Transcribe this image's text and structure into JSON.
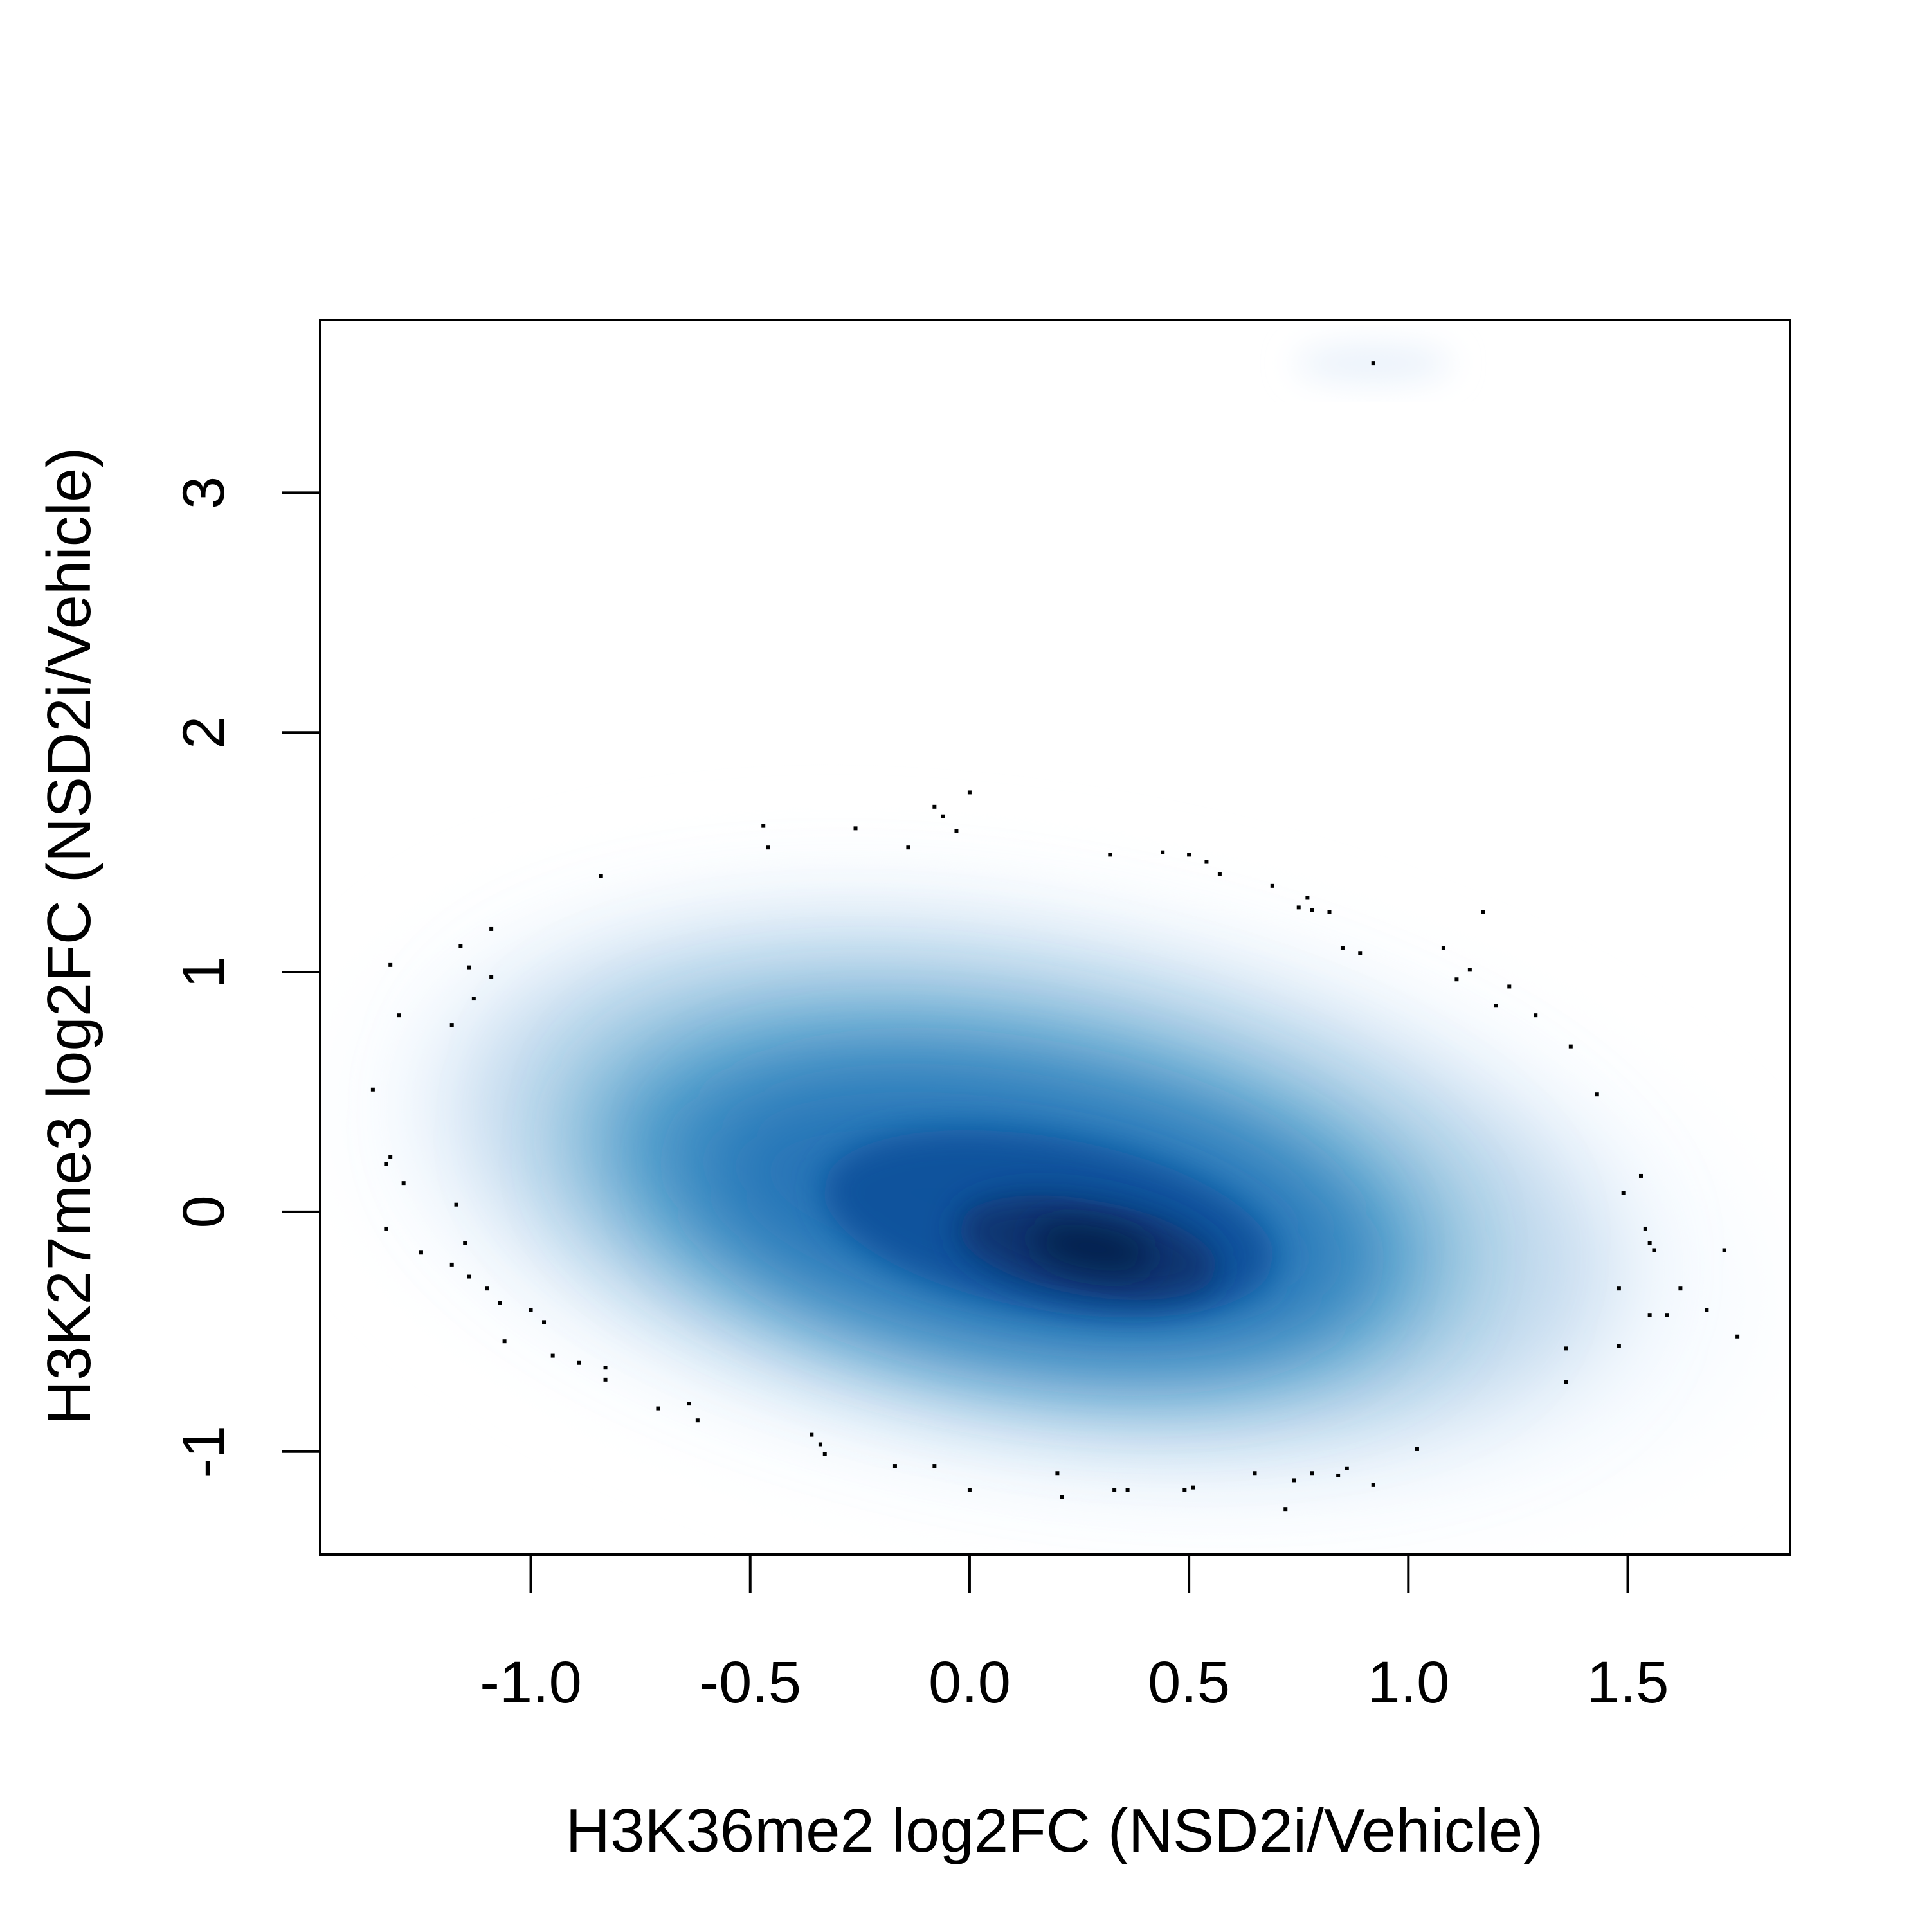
{
  "chart_data": {
    "type": "scatter",
    "style": "smoothed-density-scatter",
    "title": "",
    "xlabel": "H3K36me2 log2FC (NSD2i/Vehicle)",
    "ylabel": "H3K27me3 log2FC (NSD2i/Vehicle)",
    "xlim": [
      -1.48,
      1.87
    ],
    "ylim": [
      -1.43,
      3.72
    ],
    "x_ticks": [
      -1.0,
      -0.5,
      0.0,
      0.5,
      1.0,
      1.5
    ],
    "x_tick_labels": [
      "-1.0",
      "-0.5",
      "0.0",
      "0.5",
      "1.0",
      "1.5"
    ],
    "y_ticks": [
      -1,
      0,
      1,
      2,
      3
    ],
    "y_tick_labels": [
      "-1",
      "0",
      "1",
      "2",
      "3"
    ],
    "grid": false,
    "legend": "none",
    "colors": {
      "density_low": "#f7fbff",
      "density_mid": "#4292c6",
      "density_high": "#08306b",
      "outlier_points": "#000000",
      "axes": "#000000"
    },
    "density_center": {
      "x": 0.27,
      "y": -0.15
    },
    "outlier_points": [
      [
        0.92,
        3.54
      ],
      [
        0.0,
        1.75
      ],
      [
        -0.08,
        1.69
      ],
      [
        -0.06,
        1.65
      ],
      [
        -0.03,
        1.59
      ],
      [
        -0.47,
        1.61
      ],
      [
        -0.46,
        1.52
      ],
      [
        -0.26,
        1.6
      ],
      [
        -0.14,
        1.52
      ],
      [
        -0.84,
        1.4
      ],
      [
        0.32,
        1.49
      ],
      [
        0.44,
        1.5
      ],
      [
        0.5,
        1.49
      ],
      [
        0.54,
        1.46
      ],
      [
        0.57,
        1.41
      ],
      [
        0.69,
        1.36
      ],
      [
        0.75,
        1.27
      ],
      [
        0.77,
        1.31
      ],
      [
        0.78,
        1.26
      ],
      [
        0.82,
        1.25
      ],
      [
        0.85,
        1.1
      ],
      [
        0.89,
        1.08
      ],
      [
        1.08,
        1.1
      ],
      [
        1.11,
        0.97
      ],
      [
        1.14,
        1.01
      ],
      [
        1.17,
        1.25
      ],
      [
        1.2,
        0.86
      ],
      [
        1.23,
        0.94
      ],
      [
        1.29,
        0.82
      ],
      [
        1.37,
        0.69
      ],
      [
        1.43,
        0.49
      ],
      [
        -1.32,
        1.03
      ],
      [
        -1.3,
        0.82
      ],
      [
        -1.18,
        0.78
      ],
      [
        -1.16,
        1.11
      ],
      [
        -1.14,
        1.02
      ],
      [
        -1.13,
        0.89
      ],
      [
        -1.09,
        1.18
      ],
      [
        -1.09,
        0.98
      ],
      [
        -1.36,
        0.51
      ],
      [
        -1.33,
        0.2
      ],
      [
        -1.32,
        0.23
      ],
      [
        -1.29,
        0.12
      ],
      [
        -1.17,
        0.03
      ],
      [
        -1.33,
        -0.07
      ],
      [
        -1.25,
        -0.17
      ],
      [
        -1.15,
        -0.13
      ],
      [
        -1.18,
        -0.22
      ],
      [
        -1.14,
        -0.27
      ],
      [
        -1.1,
        -0.32
      ],
      [
        -1.07,
        -0.38
      ],
      [
        -1.06,
        -0.54
      ],
      [
        -1.0,
        -0.41
      ],
      [
        -0.97,
        -0.46
      ],
      [
        -0.95,
        -0.6
      ],
      [
        -0.89,
        -0.63
      ],
      [
        -0.83,
        -0.65
      ],
      [
        -0.83,
        -0.7
      ],
      [
        -0.71,
        -0.82
      ],
      [
        -0.64,
        -0.8
      ],
      [
        -0.62,
        -0.87
      ],
      [
        -0.36,
        -0.93
      ],
      [
        -0.34,
        -0.97
      ],
      [
        -0.33,
        -1.01
      ],
      [
        -0.17,
        -1.06
      ],
      [
        -0.08,
        -1.06
      ],
      [
        0.0,
        -1.16
      ],
      [
        0.2,
        -1.09
      ],
      [
        0.21,
        -1.19
      ],
      [
        0.33,
        -1.16
      ],
      [
        0.36,
        -1.16
      ],
      [
        0.49,
        -1.16
      ],
      [
        0.51,
        -1.15
      ],
      [
        0.65,
        -1.09
      ],
      [
        0.72,
        -1.24
      ],
      [
        0.74,
        -1.12
      ],
      [
        0.78,
        -1.09
      ],
      [
        0.84,
        -1.1
      ],
      [
        0.86,
        -1.07
      ],
      [
        0.92,
        -1.14
      ],
      [
        1.02,
        -0.99
      ],
      [
        1.36,
        -0.57
      ],
      [
        1.36,
        -0.71
      ],
      [
        1.48,
        -0.56
      ],
      [
        1.48,
        -0.32
      ],
      [
        1.49,
        0.08
      ],
      [
        1.53,
        0.15
      ],
      [
        1.54,
        -0.07
      ],
      [
        1.55,
        -0.13
      ],
      [
        1.56,
        -0.16
      ],
      [
        1.55,
        -0.43
      ],
      [
        1.59,
        -0.43
      ],
      [
        1.62,
        -0.32
      ],
      [
        1.68,
        -0.41
      ],
      [
        1.72,
        -0.16
      ],
      [
        1.75,
        -0.52
      ]
    ]
  }
}
